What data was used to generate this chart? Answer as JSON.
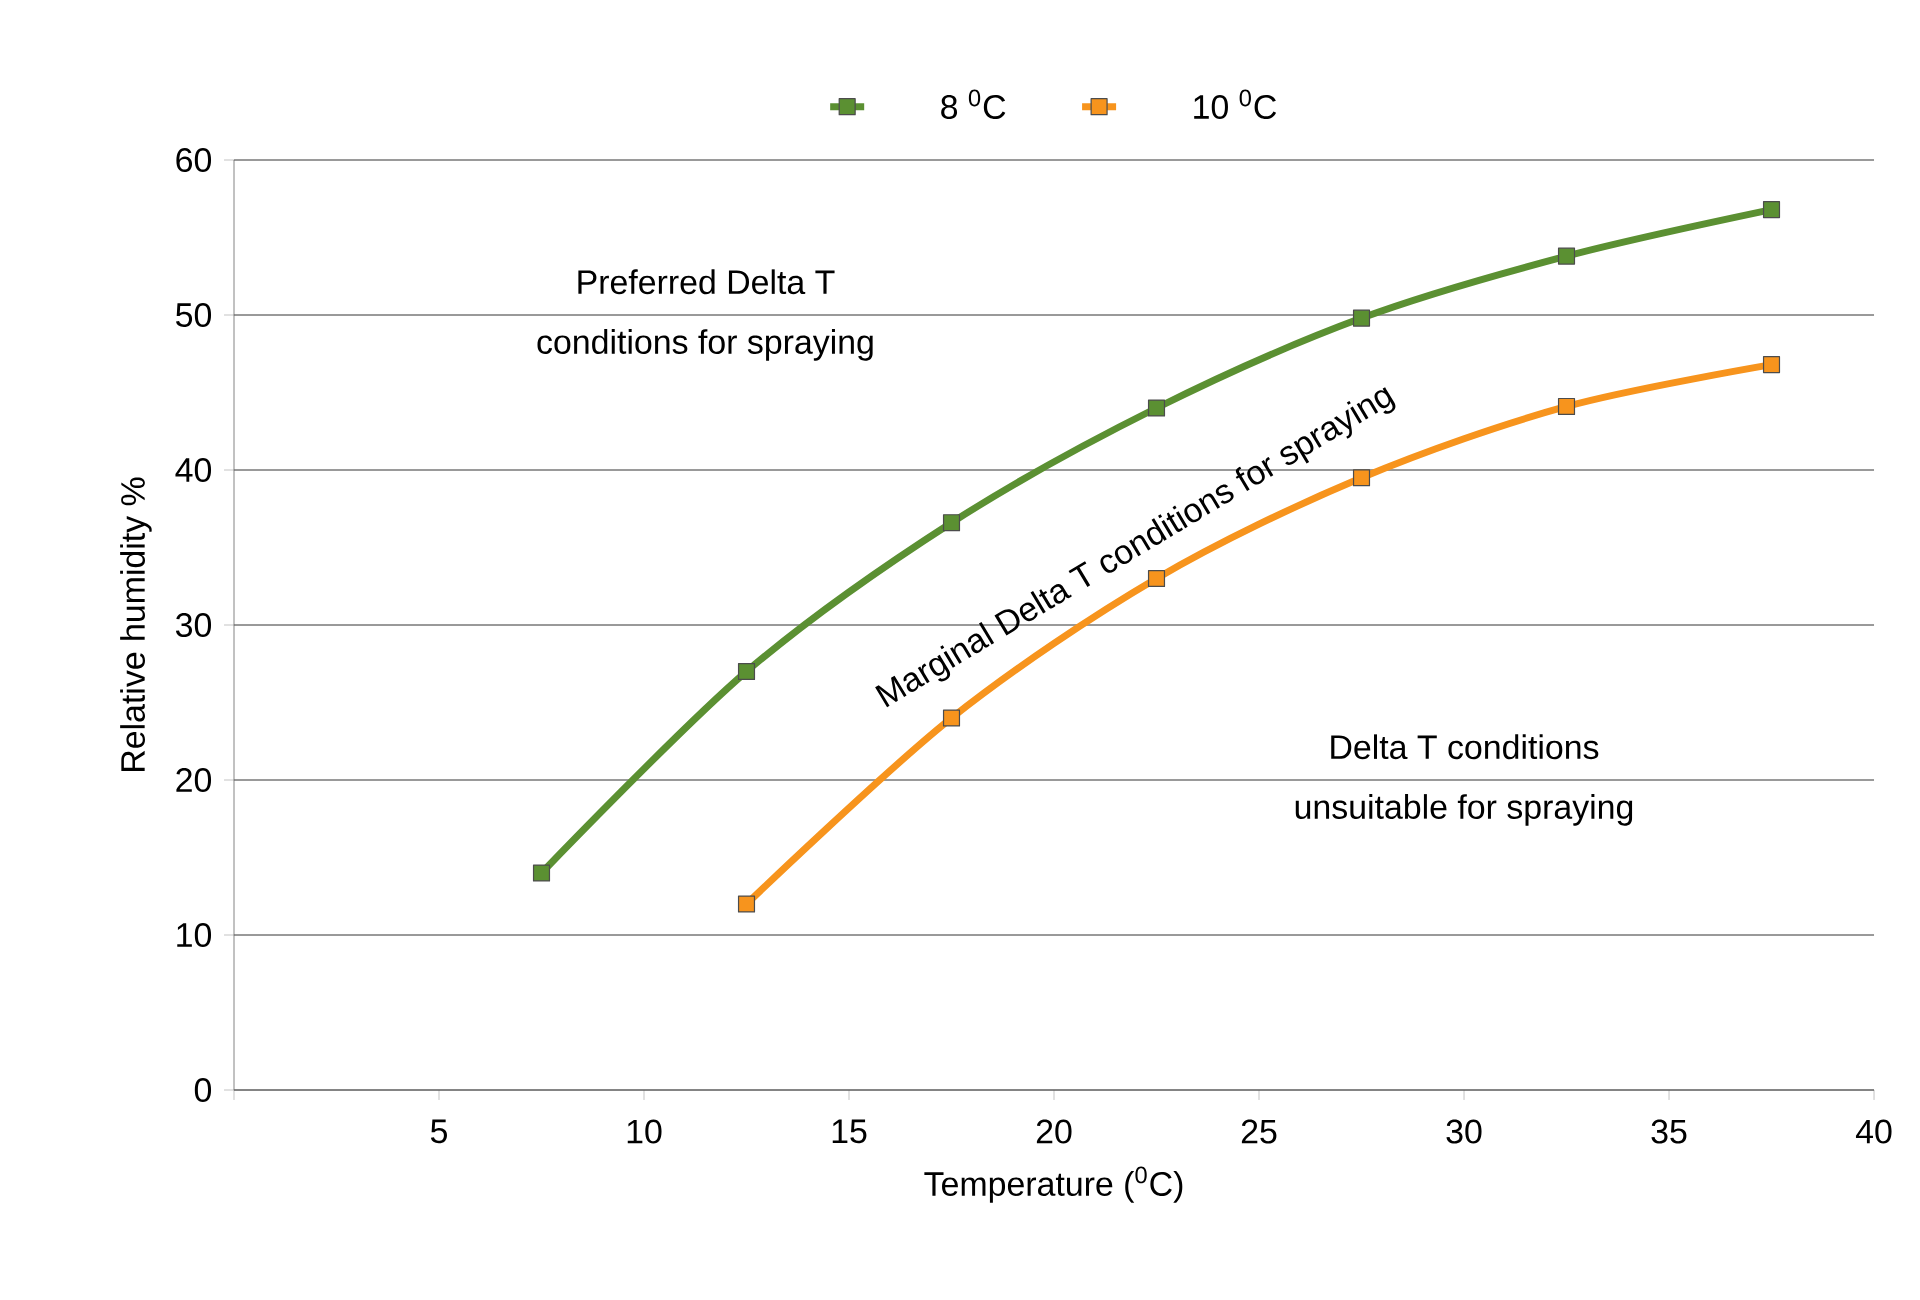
{
  "chart_data": {
    "type": "line",
    "xlabel": "Temperature ($^{0}$C)",
    "ylabel": "Relative humidity %",
    "series": [
      {
        "name": "8 $^{0}$C",
        "color": "#5b9032",
        "x": [
          7.5,
          12.5,
          17.5,
          22.5,
          27.5,
          32.5,
          37.5
        ],
        "values": [
          14,
          27,
          36.6,
          44,
          49.8,
          53.8,
          56.8
        ]
      },
      {
        "name": "10 $^{0}$C",
        "color": "#f7941d",
        "x": [
          12.5,
          17.5,
          22.5,
          27.5,
          32.5,
          37.5
        ],
        "values": [
          12,
          24,
          33,
          39.5,
          44.1,
          46.8
        ]
      }
    ],
    "xlim": [
      0,
      40
    ],
    "xticks": [
      {
        "value": 0,
        "label": null
      },
      5,
      10,
      15,
      20,
      25,
      30,
      35,
      40
    ],
    "ylim": [
      0,
      60
    ],
    "yticks": [
      0,
      10,
      20,
      30,
      40,
      50,
      60
    ],
    "grid": "y",
    "legend": "top",
    "marker": "square",
    "line_style": "solid",
    "annotations": [
      "Preferred Delta T conditions for spraying",
      "Marginal Delta T conditions for spraying",
      "Delta T conditions unsuitable for spraying"
    ]
  }
}
